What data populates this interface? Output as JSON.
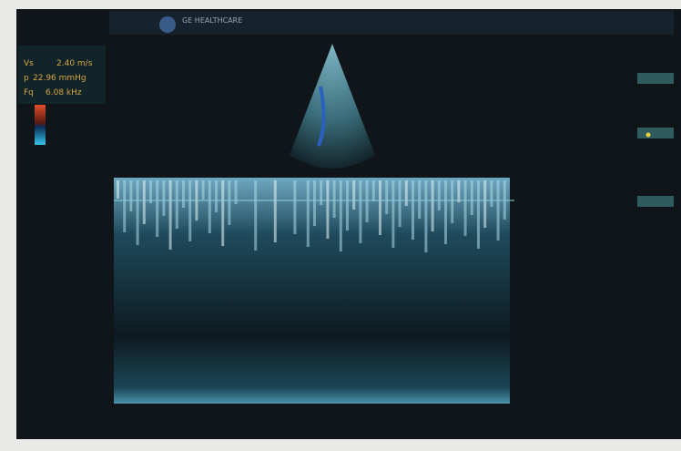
{
  "header": {
    "brand": "GE HEALTHCARE"
  },
  "measurements": [
    {
      "label": "Vs",
      "value": "2.40 m/s"
    },
    {
      "label": "p",
      "value": "22.96 mmHg"
    },
    {
      "label": "Fq",
      "value": "6.08 kHz"
    }
  ]
}
